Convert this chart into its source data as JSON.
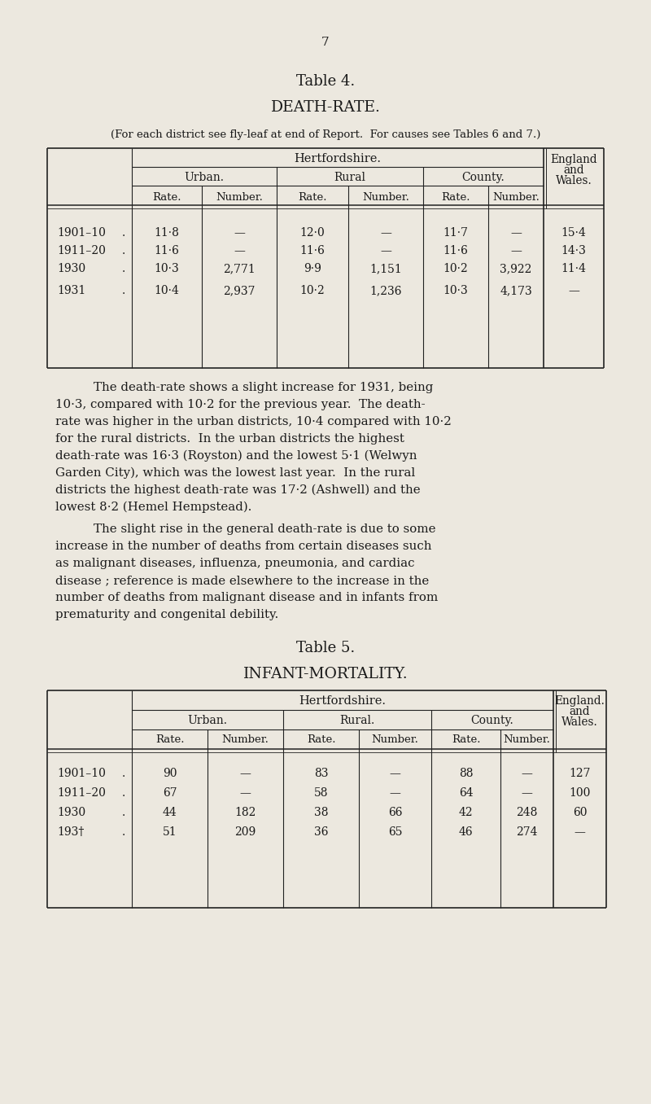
{
  "bg_color": "#ece8df",
  "text_color": "#1a1a1a",
  "line_color": "#222222",
  "page_number": "7",
  "table4_title": "Table 4.",
  "table4_subtitle": "DEATH-RATE.",
  "table4_note": "(For each district see fly-leaf at end of Report.  For causes see Tables 6 and 7.)",
  "table4_rows": [
    [
      "1901–10",
      "11·8",
      "—",
      "12·0",
      "—",
      "11·7",
      "—",
      "15·4"
    ],
    [
      "1911–20",
      "11·6",
      "—",
      "11·6",
      "—",
      "11·6",
      "—",
      "14·3"
    ],
    [
      "1930",
      "10·3",
      "2,771",
      "9·9",
      "1,151",
      "10·2",
      "3,922",
      "11·4"
    ],
    [
      "1931",
      "10·4",
      "2,937",
      "10·2",
      "1,236",
      "10·3",
      "4,173",
      "—"
    ]
  ],
  "para1_indent": "    The death-rate shows a slight increase for 1931, being",
  "para1_rest": "10·3, compared with 10·2 for the previous year.  The death-rate was higher in the urban districts, 10·4 compared with 10·2 for the rural districts.  In the urban districts the highest death-rate was 16·3 (Royston) and the lowest 5·1 (Welwyn Garden City), which was the lowest last year.  In the rural districts the highest death-rate was 17·2 (Ashwell) and the lowest 8·2 (Hemel Hempstead).",
  "para2_indent": "    The slight rise in the general death-rate is due to some",
  "para2_rest": "increase in the number of deaths from certain diseases such as malignant diseases, influenza, pneumonia, and cardiac disease ; reference is made elsewhere to the increase in the number of deaths from malignant disease and in infants from prematurity and congenital debility.",
  "table5_title": "Table 5.",
  "table5_subtitle": "INFANT-MORTALITY.",
  "table5_rows": [
    [
      "1901–10",
      "90",
      "—",
      "83",
      "—",
      "88",
      "—",
      "127"
    ],
    [
      "1911–20",
      "67",
      "—",
      "58",
      "—",
      "64",
      "—",
      "100"
    ],
    [
      "1930",
      "44",
      "182",
      "38",
      "66",
      "42",
      "248",
      "60"
    ],
    [
      "193†",
      "51",
      "209",
      "36",
      "65",
      "46",
      "274",
      "—"
    ]
  ]
}
